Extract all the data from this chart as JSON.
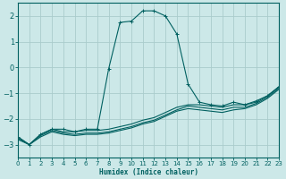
{
  "xlabel": "Humidex (Indice chaleur)",
  "background_color": "#cce8e8",
  "line_color": "#006060",
  "grid_color": "#aacccc",
  "xlim": [
    0,
    23
  ],
  "ylim": [
    -3.5,
    2.5
  ],
  "xticks": [
    0,
    1,
    2,
    3,
    4,
    5,
    6,
    7,
    8,
    9,
    10,
    11,
    12,
    13,
    14,
    15,
    16,
    17,
    18,
    19,
    20,
    21,
    22,
    23
  ],
  "yticks": [
    -3,
    -2,
    -1,
    0,
    1,
    2
  ],
  "series": [
    {
      "x": [
        0,
        1,
        2,
        3,
        4,
        5,
        6,
        7,
        8,
        9,
        10,
        11,
        12,
        13,
        14,
        15,
        16,
        17,
        18,
        19,
        20,
        21,
        22,
        23
      ],
      "y": [
        -2.7,
        -3.0,
        -2.6,
        -2.4,
        -2.4,
        -2.5,
        -2.4,
        -2.4,
        -0.05,
        1.75,
        1.8,
        2.2,
        2.2,
        2.0,
        1.3,
        -0.65,
        -1.35,
        -1.45,
        -1.5,
        -1.35,
        -1.45,
        -1.3,
        -1.1,
        -0.75
      ],
      "markers": true
    },
    {
      "x": [
        0,
        1,
        2,
        3,
        4,
        5,
        6,
        7,
        8,
        9,
        10,
        11,
        12,
        13,
        14,
        15,
        16,
        17,
        18,
        19,
        20,
        21,
        22,
        23
      ],
      "y": [
        -2.7,
        -3.0,
        -2.6,
        -2.4,
        -2.5,
        -2.5,
        -2.45,
        -2.45,
        -2.4,
        -2.3,
        -2.2,
        -2.05,
        -1.95,
        -1.75,
        -1.55,
        -1.45,
        -1.45,
        -1.5,
        -1.55,
        -1.45,
        -1.45,
        -1.35,
        -1.1,
        -0.75
      ],
      "markers": false
    },
    {
      "x": [
        0,
        1,
        2,
        3,
        4,
        5,
        6,
        7,
        8,
        9,
        10,
        11,
        12,
        13,
        14,
        15,
        16,
        17,
        18,
        19,
        20,
        21,
        22,
        23
      ],
      "y": [
        -2.75,
        -3.0,
        -2.65,
        -2.45,
        -2.55,
        -2.6,
        -2.55,
        -2.55,
        -2.5,
        -2.4,
        -2.3,
        -2.15,
        -2.05,
        -1.85,
        -1.65,
        -1.5,
        -1.55,
        -1.6,
        -1.65,
        -1.55,
        -1.55,
        -1.4,
        -1.15,
        -0.8
      ],
      "markers": false
    },
    {
      "x": [
        0,
        1,
        2,
        3,
        4,
        5,
        6,
        7,
        8,
        9,
        10,
        11,
        12,
        13,
        14,
        15,
        16,
        17,
        18,
        19,
        20,
        21,
        22,
        23
      ],
      "y": [
        -2.8,
        -3.0,
        -2.7,
        -2.5,
        -2.6,
        -2.65,
        -2.6,
        -2.6,
        -2.55,
        -2.45,
        -2.35,
        -2.2,
        -2.1,
        -1.9,
        -1.7,
        -1.6,
        -1.65,
        -1.7,
        -1.75,
        -1.65,
        -1.6,
        -1.45,
        -1.2,
        -0.85
      ],
      "markers": false
    }
  ]
}
